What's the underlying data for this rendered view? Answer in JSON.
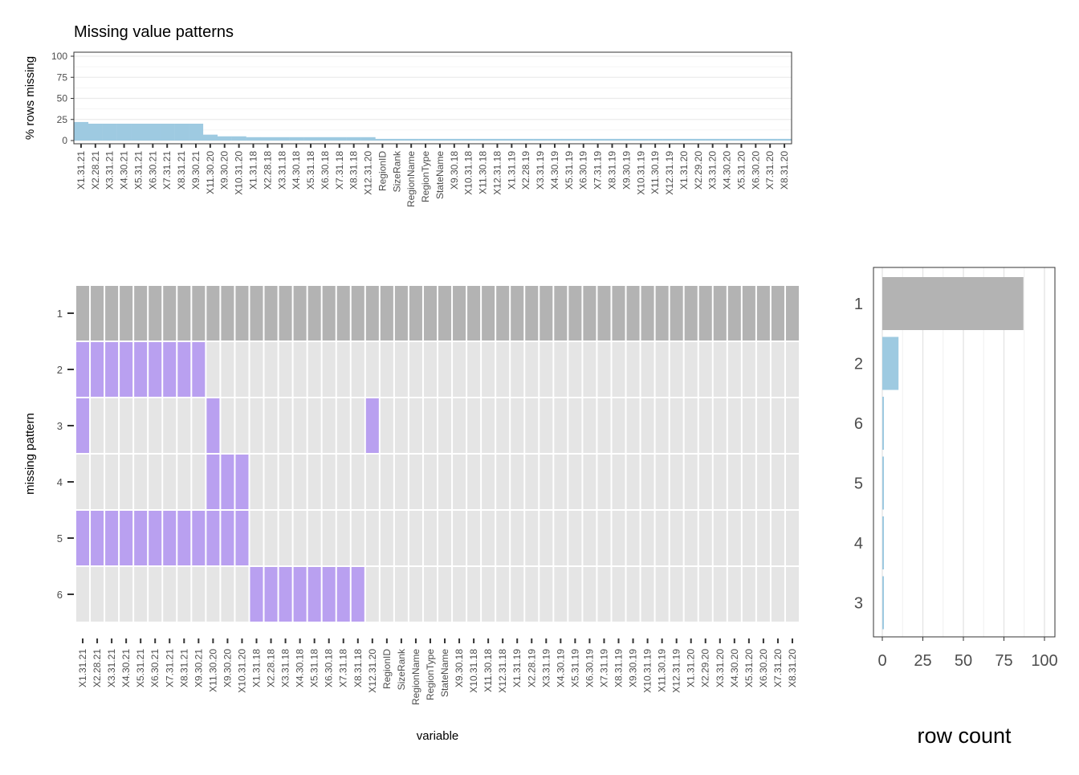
{
  "chart_data": [
    {
      "type": "bar",
      "title": "Missing value patterns",
      "ylabel": "% rows missing",
      "xlabel": "",
      "ylim": [
        0,
        100
      ],
      "yticks": [
        0,
        25,
        50,
        75,
        100
      ],
      "grid": true,
      "bar_color": "#9ecae1",
      "categories": [
        "X1.31.21",
        "X2.28.21",
        "X3.31.21",
        "X4.30.21",
        "X5.31.21",
        "X6.30.21",
        "X7.31.21",
        "X8.31.21",
        "X9.30.21",
        "X11.30.20",
        "X9.30.20",
        "X10.31.20",
        "X1.31.18",
        "X2.28.18",
        "X3.31.18",
        "X4.30.18",
        "X5.31.18",
        "X6.30.18",
        "X7.31.18",
        "X8.31.18",
        "X12.31.20",
        "RegionID",
        "SizeRank",
        "RegionName",
        "RegionType",
        "StateName",
        "X9.30.18",
        "X10.31.18",
        "X11.30.18",
        "X12.31.18",
        "X1.31.19",
        "X2.28.19",
        "X3.31.19",
        "X4.30.19",
        "X5.31.19",
        "X6.30.19",
        "X7.31.19",
        "X8.31.19",
        "X9.30.19",
        "X10.31.19",
        "X11.30.19",
        "X12.31.19",
        "X1.31.20",
        "X2.29.20",
        "X3.31.20",
        "X4.30.20",
        "X5.31.20",
        "X6.30.20",
        "X7.31.20",
        "X8.31.20"
      ],
      "values": [
        22,
        20,
        20,
        20,
        20,
        20,
        20,
        20,
        20,
        7,
        5,
        5,
        4,
        4,
        4,
        4,
        4,
        4,
        4,
        4,
        4,
        2,
        2,
        2,
        2,
        2,
        2,
        2,
        2,
        2,
        2,
        2,
        2,
        2,
        2,
        2,
        2,
        2,
        2,
        2,
        2,
        2,
        2,
        2,
        2,
        2,
        2,
        2,
        2,
        2
      ]
    },
    {
      "type": "heatmap",
      "xlabel": "variable",
      "ylabel": "missing pattern",
      "rows": [
        "1",
        "2",
        "3",
        "4",
        "5",
        "6"
      ],
      "colors": {
        "present_pattern_1": "#b3b3b3",
        "missing": "#b9a0f0",
        "present": "#e5e5e5"
      },
      "columns": [
        "X1.31.21",
        "X2.28.21",
        "X3.31.21",
        "X4.30.21",
        "X5.31.21",
        "X6.30.21",
        "X7.31.21",
        "X8.31.21",
        "X9.30.21",
        "X11.30.20",
        "X9.30.20",
        "X10.31.20",
        "X1.31.18",
        "X2.28.18",
        "X3.31.18",
        "X4.30.18",
        "X5.31.18",
        "X6.30.18",
        "X7.31.18",
        "X8.31.18",
        "X12.31.20",
        "RegionID",
        "SizeRank",
        "RegionName",
        "RegionType",
        "StateName",
        "X9.30.18",
        "X10.31.18",
        "X11.30.18",
        "X12.31.18",
        "X1.31.19",
        "X2.28.19",
        "X3.31.19",
        "X4.30.19",
        "X5.31.19",
        "X6.30.19",
        "X7.31.19",
        "X8.31.19",
        "X9.30.19",
        "X10.31.19",
        "X11.30.19",
        "X12.31.19",
        "X1.31.20",
        "X2.29.20",
        "X3.31.20",
        "X4.30.20",
        "X5.31.20",
        "X6.30.20",
        "X7.31.20",
        "X8.31.20"
      ],
      "missing_columns_by_pattern": {
        "1": [],
        "2": [
          "X1.31.21",
          "X2.28.21",
          "X3.31.21",
          "X4.30.21",
          "X5.31.21",
          "X6.30.21",
          "X7.31.21",
          "X8.31.21",
          "X9.30.21"
        ],
        "3": [
          "X1.31.21",
          "X11.30.20",
          "X12.31.20"
        ],
        "4": [
          "X11.30.20",
          "X9.30.20",
          "X10.31.20"
        ],
        "5": [
          "X1.31.21",
          "X2.28.21",
          "X3.31.21",
          "X4.30.21",
          "X5.31.21",
          "X6.30.21",
          "X7.31.21",
          "X8.31.21",
          "X9.30.21",
          "X11.30.20",
          "X9.30.20",
          "X10.31.20"
        ],
        "6": [
          "X1.31.18",
          "X2.28.18",
          "X3.31.18",
          "X4.30.18",
          "X5.31.18",
          "X6.30.18",
          "X7.31.18",
          "X8.31.18"
        ]
      }
    },
    {
      "type": "bar",
      "orientation": "horizontal",
      "xlabel": "row count",
      "ylabel": "",
      "xlim": [
        0,
        100
      ],
      "xticks": [
        0,
        25,
        50,
        75,
        100
      ],
      "grid": true,
      "categories": [
        "1",
        "2",
        "6",
        "5",
        "4",
        "3"
      ],
      "values": [
        87,
        10,
        1,
        1,
        1,
        1
      ],
      "colors": [
        "#b3b3b3",
        "#9ecae1",
        "#9ecae1",
        "#9ecae1",
        "#9ecae1",
        "#9ecae1"
      ]
    }
  ]
}
